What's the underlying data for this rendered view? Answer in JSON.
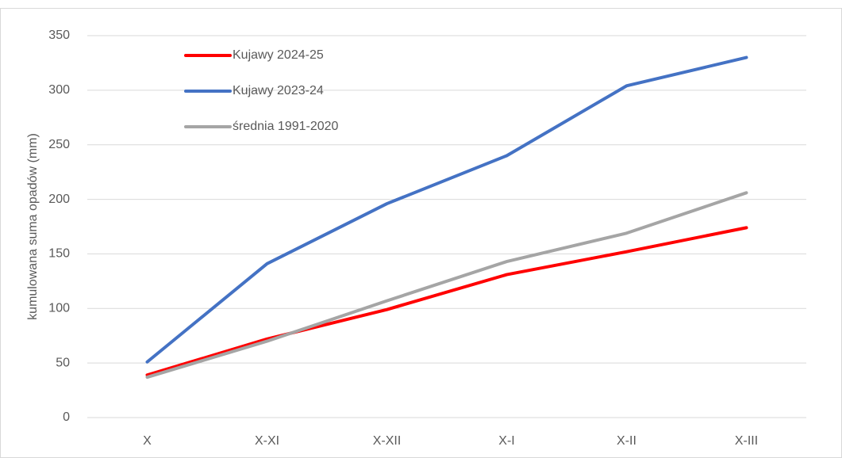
{
  "chart_data": {
    "type": "line",
    "y_axis_label": "kumulowana suma opadów (mm)",
    "categories": [
      "X",
      "X-XI",
      "X-XII",
      "X-I",
      "X-II",
      "X-III"
    ],
    "series": [
      {
        "name": "Kujawy 2024-25",
        "color": "#ff0000",
        "values": [
          39,
          72,
          99,
          131,
          152,
          174
        ]
      },
      {
        "name": "Kujawy 2023-24",
        "color": "#4472c4",
        "values": [
          51,
          141,
          196,
          240,
          304,
          330
        ]
      },
      {
        "name": "średnia 1991-2020",
        "color": "#a5a5a5",
        "values": [
          37,
          70,
          107,
          143,
          169,
          206
        ]
      }
    ],
    "ylim": [
      0,
      350
    ],
    "yticks": [
      0,
      50,
      100,
      150,
      200,
      250,
      300,
      350
    ],
    "grid": true,
    "legend": "top-left"
  }
}
